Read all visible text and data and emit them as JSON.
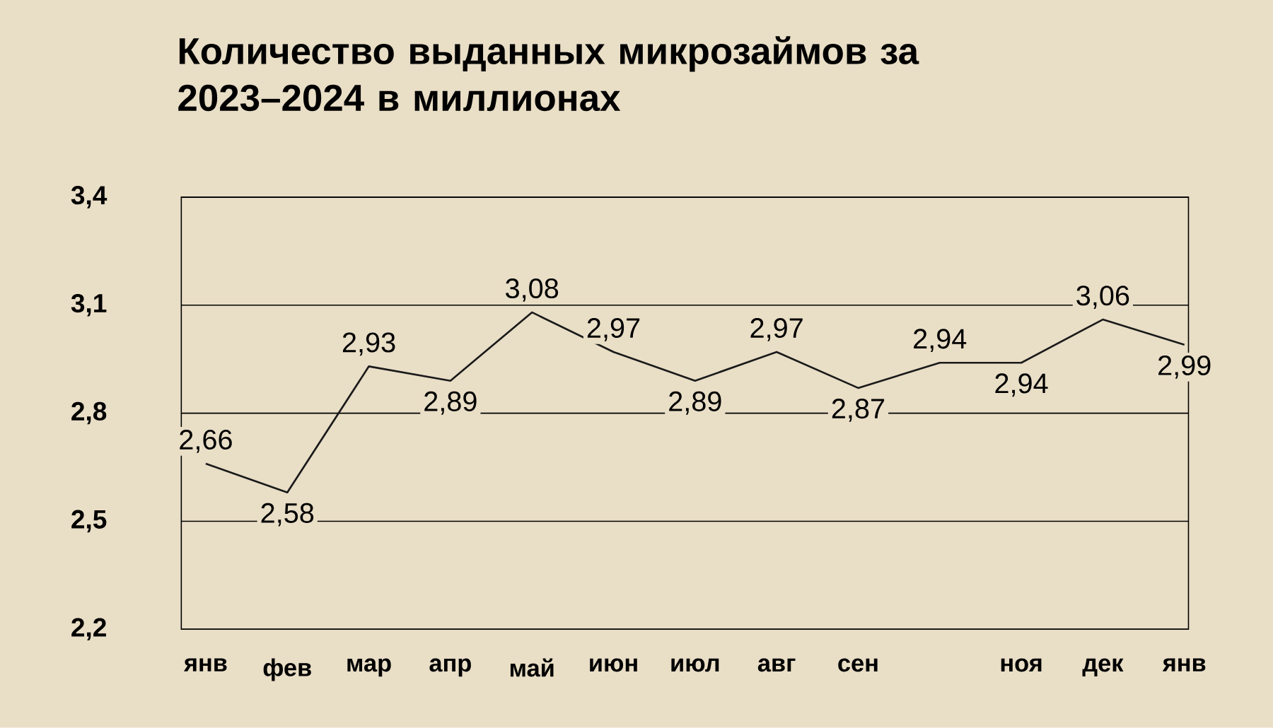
{
  "chart_data": {
    "type": "line",
    "title": "Количество выданных микрозаймов за 2023–2024 в миллионах",
    "categories": [
      "янв",
      "фев",
      "мар",
      "апр",
      "май",
      "июн",
      "июл",
      "авг",
      "сен",
      null,
      "ноя",
      "дек",
      "янв"
    ],
    "values": [
      2.66,
      2.58,
      2.93,
      2.89,
      3.08,
      2.97,
      2.89,
      2.97,
      2.87,
      2.94,
      2.94,
      3.06,
      2.99
    ],
    "value_labels": [
      "2,66",
      "2,58",
      "2,93",
      "2,89",
      "3,08",
      "2,97",
      "2,89",
      "2,97",
      "2,87",
      "2,94",
      "2,94",
      "3,06",
      "2,99"
    ],
    "color": "#1a1a1a",
    "ylim": [
      2.2,
      3.4
    ],
    "yticks": [
      {
        "value": 2.2,
        "label": "2,2"
      },
      {
        "value": 2.5,
        "label": "2,5"
      },
      {
        "value": 2.8,
        "label": "2,8"
      },
      {
        "value": 3.1,
        "label": "3,1"
      },
      {
        "value": 3.4,
        "label": "3,4"
      }
    ],
    "grid": "y"
  }
}
